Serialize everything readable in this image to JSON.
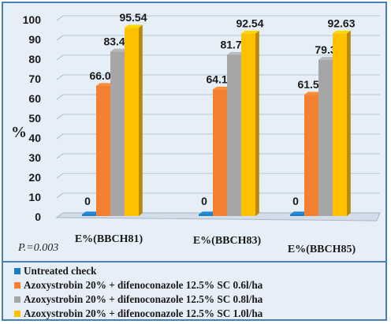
{
  "chart_data": {
    "type": "bar",
    "title": "",
    "xlabel": "",
    "ylabel": "%",
    "ylim": [
      0,
      100
    ],
    "yticks": [
      0,
      10,
      20,
      30,
      40,
      50,
      60,
      70,
      80,
      90,
      100
    ],
    "grid": true,
    "legend_position": "bottom",
    "categories": [
      "E%(BBCH81)",
      "E%(BBCH83)",
      "E%(BBCH85)"
    ],
    "series": [
      {
        "name": "Untreated check",
        "color": "#1f7bbf",
        "values": [
          0,
          0,
          0
        ],
        "labels": [
          "0",
          "0",
          "0"
        ]
      },
      {
        "name": "Azoxystrobin 20% + difenoconazole 12.5% SC 0.6l/ha",
        "color": "#f28030",
        "values": [
          66.01,
          64.18,
          61.54
        ],
        "labels": [
          "66.01",
          "64.18",
          "61.54"
        ]
      },
      {
        "name": "Azoxystrobin 20% + difenoconazole 12.5% SC 0.8l/ha",
        "color": "#a6a6a6",
        "values": [
          83.47,
          81.77,
          79.3
        ],
        "labels": [
          "83.47",
          "81.77",
          "79.3"
        ]
      },
      {
        "name": "Azoxystrobin 20% + difenoconazole 12.5% SC 1.0l/ha",
        "color": "#ffc000",
        "values": [
          95.54,
          92.54,
          92.63
        ],
        "labels": [
          "95.54",
          "92.54",
          "92.63"
        ]
      }
    ],
    "annotation": "P.=0.003"
  }
}
